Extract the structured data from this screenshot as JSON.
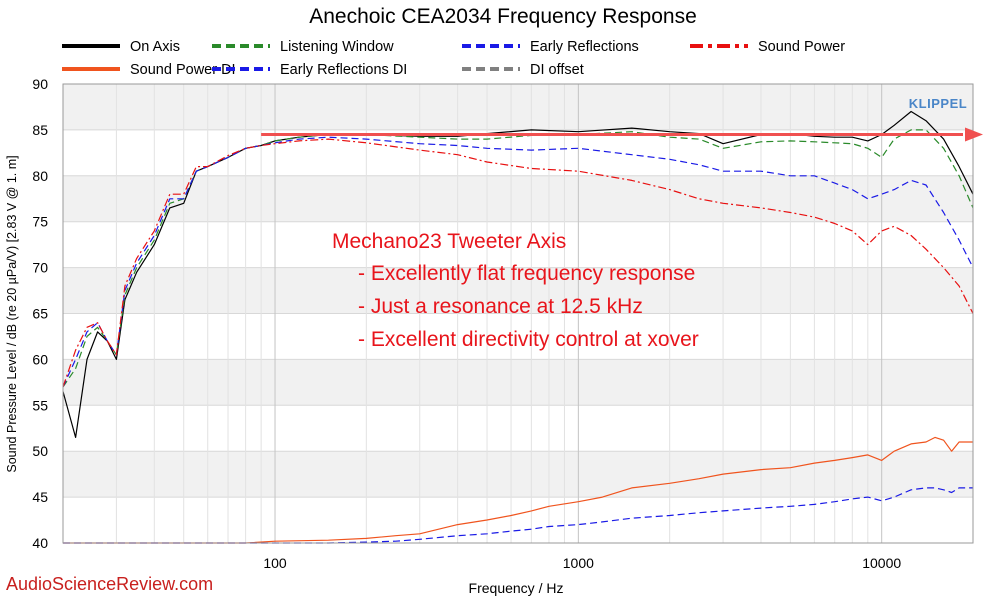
{
  "chart_data": {
    "type": "line",
    "title": "Anechoic CEA2034 Frequency Response",
    "xlabel": "Frequency / Hz",
    "ylabel": "Sound Pressure Level / dB (re 20 µPa/V)  [2.83  V @ 1. m]",
    "xscale": "log",
    "xlim": [
      20,
      20000
    ],
    "ylim": [
      40,
      90
    ],
    "x_ticks": [
      100,
      1000,
      10000
    ],
    "x_tick_labels": [
      "100",
      "1000",
      "10000"
    ],
    "y_ticks": [
      40,
      45,
      50,
      55,
      60,
      65,
      70,
      75,
      80,
      85,
      90
    ],
    "grid": true,
    "legend_position": "top",
    "series": [
      {
        "name": "On Axis",
        "color": "#000000",
        "dash": "solid",
        "x": [
          20,
          22,
          24,
          26,
          28,
          30,
          32,
          35,
          40,
          45,
          50,
          55,
          60,
          70,
          80,
          90,
          100,
          120,
          150,
          200,
          300,
          400,
          500,
          700,
          1000,
          1500,
          2000,
          2500,
          3000,
          4000,
          5000,
          6000,
          7000,
          8000,
          9000,
          10000,
          11000,
          12500,
          14000,
          16000,
          18000,
          20000
        ],
        "y": [
          56.5,
          51.5,
          60.0,
          63.0,
          62.0,
          60.0,
          66.5,
          69.5,
          72.5,
          76.5,
          77.0,
          80.5,
          81.0,
          82.0,
          83.0,
          83.3,
          83.8,
          84.2,
          84.5,
          84.5,
          84.3,
          84.3,
          84.6,
          85.0,
          84.8,
          85.2,
          84.8,
          84.6,
          83.5,
          84.5,
          84.6,
          84.3,
          84.2,
          84.2,
          83.8,
          84.5,
          85.5,
          87.0,
          86.0,
          84.0,
          81.0,
          78.0
        ]
      },
      {
        "name": "Listening Window",
        "color": "#2a8a2a",
        "dash": "dashed",
        "x": [
          20,
          22,
          24,
          26,
          28,
          30,
          32,
          35,
          40,
          45,
          50,
          55,
          60,
          70,
          80,
          90,
          100,
          120,
          150,
          200,
          300,
          400,
          500,
          700,
          1000,
          1500,
          2000,
          2500,
          3000,
          4000,
          5000,
          6000,
          7000,
          8000,
          9000,
          10000,
          11000,
          12500,
          14000,
          16000,
          18000,
          20000
        ],
        "y": [
          57.0,
          59.0,
          62.5,
          63.5,
          62.0,
          60.5,
          67.0,
          70.0,
          73.0,
          77.0,
          77.5,
          80.5,
          81.0,
          82.0,
          83.0,
          83.3,
          83.8,
          84.2,
          84.5,
          84.5,
          84.2,
          84.0,
          84.0,
          84.4,
          84.5,
          84.8,
          84.2,
          84.0,
          83.0,
          83.7,
          83.8,
          83.7,
          83.6,
          83.5,
          83.0,
          82.0,
          84.0,
          85.0,
          85.0,
          83.0,
          80.0,
          76.5
        ]
      },
      {
        "name": "Early Reflections",
        "color": "#1a1ae6",
        "dash": "dashed",
        "x": [
          20,
          22,
          24,
          26,
          28,
          30,
          32,
          35,
          40,
          45,
          50,
          55,
          60,
          70,
          80,
          90,
          100,
          120,
          150,
          200,
          300,
          400,
          500,
          700,
          1000,
          1500,
          2000,
          2500,
          3000,
          4000,
          5000,
          6000,
          7000,
          8000,
          9000,
          10000,
          11000,
          12500,
          14000,
          16000,
          18000,
          20000
        ],
        "y": [
          57.0,
          60.0,
          63.0,
          64.0,
          62.0,
          60.5,
          67.5,
          70.5,
          73.5,
          77.5,
          77.5,
          80.5,
          81.0,
          82.0,
          83.0,
          83.3,
          83.6,
          84.0,
          84.2,
          84.0,
          83.5,
          83.3,
          83.0,
          82.8,
          83.0,
          82.3,
          81.8,
          81.2,
          80.5,
          80.5,
          80.0,
          80.0,
          79.2,
          78.5,
          77.5,
          78.0,
          78.5,
          79.5,
          79.0,
          76.0,
          73.0,
          70.0
        ]
      },
      {
        "name": "Sound Power",
        "color": "#e81010",
        "dash": "dashdot",
        "x": [
          20,
          22,
          24,
          26,
          28,
          30,
          32,
          35,
          40,
          45,
          50,
          55,
          60,
          70,
          80,
          90,
          100,
          120,
          150,
          200,
          300,
          400,
          500,
          700,
          1000,
          1500,
          2000,
          2500,
          3000,
          4000,
          5000,
          6000,
          7000,
          8000,
          9000,
          10000,
          11000,
          12500,
          14000,
          16000,
          18000,
          20000
        ],
        "y": [
          57.0,
          61.0,
          63.5,
          64.0,
          62.0,
          60.5,
          68.0,
          71.0,
          74.0,
          78.0,
          78.0,
          81.0,
          81.0,
          82.2,
          83.0,
          83.3,
          83.5,
          83.8,
          84.0,
          83.6,
          82.8,
          82.3,
          81.5,
          80.8,
          80.5,
          79.5,
          78.5,
          77.5,
          77.0,
          76.5,
          76.0,
          75.5,
          74.8,
          74.0,
          72.5,
          74.0,
          74.5,
          73.5,
          72.0,
          70.0,
          68.0,
          65.0
        ]
      },
      {
        "name": "Sound Power DI",
        "color": "#f0541e",
        "dash": "solid",
        "x": [
          20,
          30,
          50,
          80,
          100,
          150,
          200,
          250,
          300,
          400,
          500,
          600,
          700,
          800,
          1000,
          1200,
          1500,
          2000,
          2500,
          3000,
          4000,
          5000,
          6000,
          7000,
          8000,
          9000,
          10000,
          11000,
          12500,
          14000,
          15000,
          16000,
          17000,
          18000,
          20000
        ],
        "y": [
          40.0,
          40.0,
          40.0,
          40.0,
          40.2,
          40.3,
          40.5,
          40.8,
          41.0,
          42.0,
          42.5,
          43.0,
          43.5,
          44.0,
          44.5,
          45.0,
          46.0,
          46.5,
          47.0,
          47.5,
          48.0,
          48.2,
          48.7,
          49.0,
          49.3,
          49.6,
          49.0,
          50.0,
          50.8,
          51.0,
          51.5,
          51.2,
          50.0,
          51.0,
          51.0
        ]
      },
      {
        "name": "Early Reflections DI",
        "color": "#1a1ae6",
        "dash": "dashed",
        "x": [
          20,
          30,
          50,
          80,
          100,
          150,
          200,
          250,
          300,
          400,
          500,
          600,
          700,
          800,
          1000,
          1200,
          1500,
          2000,
          2500,
          3000,
          4000,
          5000,
          6000,
          7000,
          8000,
          9000,
          10000,
          11000,
          12500,
          14000,
          15000,
          16000,
          17000,
          18000,
          20000
        ],
        "y": [
          40.0,
          40.0,
          40.0,
          40.0,
          40.0,
          40.0,
          40.1,
          40.2,
          40.4,
          40.8,
          41.0,
          41.3,
          41.5,
          41.8,
          42.0,
          42.3,
          42.7,
          43.0,
          43.3,
          43.5,
          43.8,
          44.0,
          44.2,
          44.5,
          44.8,
          45.0,
          44.6,
          45.0,
          45.8,
          46.0,
          46.0,
          45.8,
          45.5,
          46.0,
          46.0
        ]
      },
      {
        "name": "DI offset",
        "color": "#808080",
        "dash": "dashed",
        "x": [],
        "y": []
      }
    ],
    "annotations": {
      "heading": "Mechano23 Tweeter Axis",
      "lines": [
        "- Excellently flat frequency response",
        "- Just a resonance at 12.5 kHz",
        "- Excellent directivity control at xover"
      ]
    },
    "reference_arrow": {
      "y": 84.5,
      "x_start": 90,
      "x_end": 20000,
      "color": "#f05050"
    },
    "logo_text": "KLIPPEL",
    "watermark": "AudioScienceReview.com"
  }
}
